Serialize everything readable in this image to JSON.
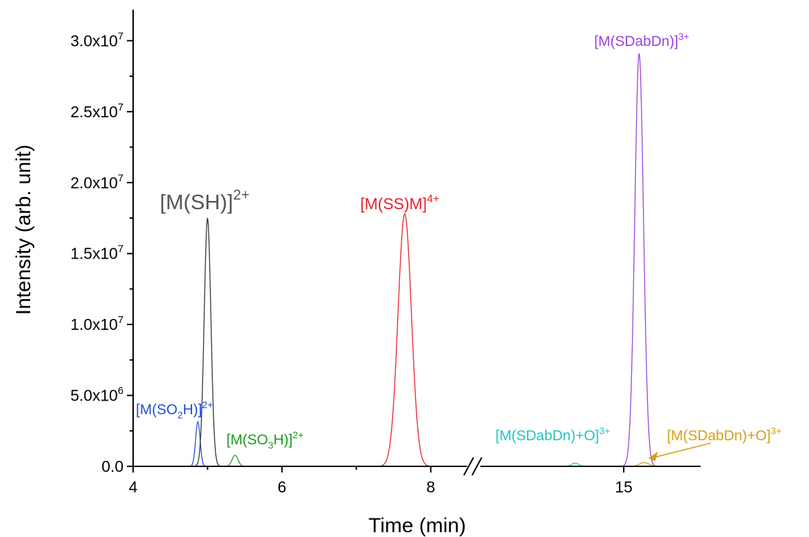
{
  "chart_data": {
    "type": "line",
    "xlabel": "Time (min)",
    "ylabel": "Intensity (arb. unit)",
    "ylim": [
      0,
      32000000
    ],
    "x_axis_break": true,
    "segments": [
      {
        "xlim": [
          4,
          8.5
        ],
        "ticks": [
          {
            "value": 4,
            "label": "4"
          },
          {
            "value": 6,
            "label": "6"
          },
          {
            "value": 8,
            "label": "8"
          }
        ]
      },
      {
        "xlim": [
          12.2,
          16.5
        ],
        "ticks": [
          {
            "value": 15,
            "label": "15"
          }
        ]
      }
    ],
    "y_ticks": [
      {
        "value": 0,
        "mant": "0.0",
        "exp": ""
      },
      {
        "value": 5000000,
        "mant": "5.0x10",
        "exp": "6"
      },
      {
        "value": 10000000,
        "mant": "1.0x10",
        "exp": "7"
      },
      {
        "value": 15000000,
        "mant": "1.5x10",
        "exp": "7"
      },
      {
        "value": 20000000,
        "mant": "2.0x10",
        "exp": "7"
      },
      {
        "value": 25000000,
        "mant": "2.5x10",
        "exp": "7"
      },
      {
        "value": 30000000,
        "mant": "3.0x10",
        "exp": "7"
      }
    ],
    "series": [
      {
        "name": "[M(SO2H)]2+",
        "color": "#1f4fd6",
        "peak_x": 4.87,
        "peak_y": 3150000,
        "width": 0.03
      },
      {
        "name": "[M(SH)]2+",
        "color": "#333333",
        "peak_x": 5.0,
        "peak_y": 17500000,
        "width": 0.045
      },
      {
        "name": "[M(SO3H)]2+",
        "color": "#1e9a1e",
        "peak_x": 5.37,
        "peak_y": 780000,
        "width": 0.04
      },
      {
        "name": "[M(SS)M]4+",
        "color": "#e8202a",
        "peak_x": 7.65,
        "peak_y": 17800000,
        "width": 0.09
      },
      {
        "name": "[M(SDabDn)+O]3+",
        "color": "#22c4c4",
        "peak_x": 14.05,
        "peak_y": 230000,
        "width": 0.07
      },
      {
        "name": "[M(SDabDn)]3+",
        "color": "#9b40dd",
        "peak_x": 15.3,
        "peak_y": 29100000,
        "width": 0.085
      },
      {
        "name": "[M(SDabDn)+O]3+",
        "color": "#d4a017",
        "peak_x": 15.4,
        "peak_y": 270000,
        "width": 0.09
      }
    ],
    "annotations": [
      {
        "id": "so2h",
        "color": "#1f4fd6",
        "parts": [
          [
            "[M(SO",
            "n"
          ],
          [
            "2",
            "sub"
          ],
          [
            "H)]",
            "n"
          ],
          [
            "2+",
            "sup"
          ]
        ]
      },
      {
        "id": "sh",
        "color": "#555555",
        "parts": [
          [
            "[M(SH)]",
            "n"
          ],
          [
            "2+",
            "sup"
          ]
        ]
      },
      {
        "id": "so3h",
        "color": "#1e9a1e",
        "parts": [
          [
            "[M(SO",
            "n"
          ],
          [
            "3",
            "sub"
          ],
          [
            "H)]",
            "n"
          ],
          [
            "2+",
            "sup"
          ]
        ]
      },
      {
        "id": "ssm",
        "color": "#e8202a",
        "parts": [
          [
            "[M(SS)M]",
            "n"
          ],
          [
            "4+",
            "sup"
          ]
        ]
      },
      {
        "id": "sdabdn-o-cyan",
        "color": "#22c4c4",
        "parts": [
          [
            "[M(SDabDn)+O]",
            "n"
          ],
          [
            "3+",
            "sup"
          ]
        ]
      },
      {
        "id": "sdabdn",
        "color": "#9b40dd",
        "parts": [
          [
            "[M(SDabDn)]",
            "n"
          ],
          [
            "3+",
            "sup"
          ]
        ]
      },
      {
        "id": "sdabdn-o-gold",
        "color": "#d4a017",
        "parts": [
          [
            "[M(SDabDn)+O]",
            "n"
          ],
          [
            "3+",
            "sup"
          ]
        ]
      }
    ]
  }
}
